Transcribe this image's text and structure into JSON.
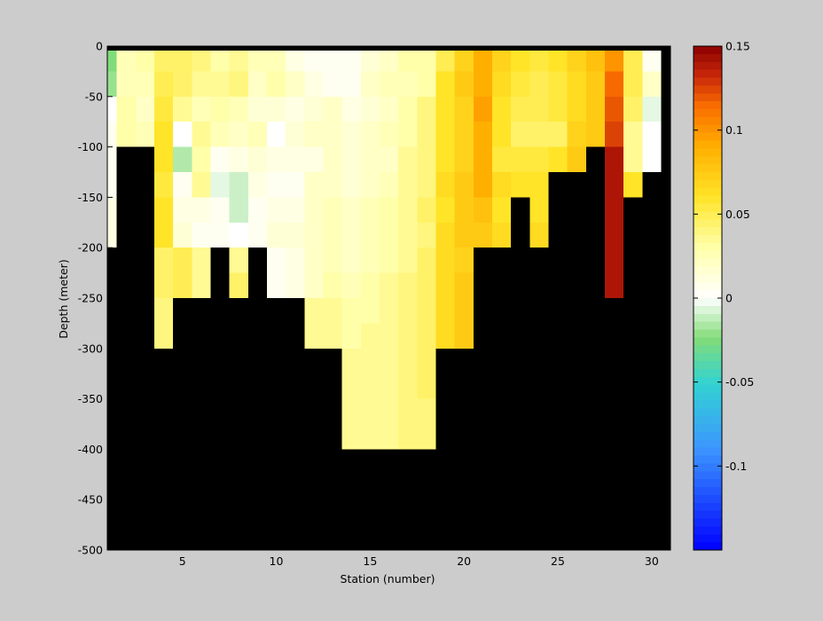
{
  "chart_data": {
    "type": "heatmap",
    "title": "",
    "xlabel": "Station (number)",
    "ylabel": "Depth (meter)",
    "xlim": [
      1,
      31
    ],
    "ylim": [
      -500,
      0
    ],
    "xticks": [
      5,
      10,
      15,
      20,
      25,
      30
    ],
    "yticks": [
      0,
      -50,
      -100,
      -150,
      -200,
      -250,
      -300,
      -350,
      -400,
      -450,
      -500
    ],
    "missing_color": "#000000",
    "colorbar": {
      "range": [
        -0.15,
        0.15
      ],
      "ticks": [
        0.15,
        0.1,
        0.05,
        0,
        -0.05,
        -0.1
      ],
      "tick_labels": [
        "0.15",
        "0.1",
        "0.05",
        "0",
        "-0.05",
        "-0.1"
      ]
    },
    "stations": [
      1,
      2,
      3,
      4,
      5,
      6,
      7,
      8,
      9,
      10,
      11,
      12,
      13,
      14,
      15,
      16,
      17,
      18,
      19,
      20,
      21,
      22,
      23,
      24,
      25,
      26,
      27,
      28,
      29,
      30
    ],
    "depths": [
      0,
      -25,
      -50,
      -75,
      -100,
      -125,
      -150,
      -175,
      -200,
      -225,
      -250,
      -275,
      -300,
      -325,
      -350,
      -375,
      -400,
      -425,
      -450,
      -475
    ],
    "depth_step": 25,
    "values": [
      [
        -0.025,
        0.025,
        0.03,
        0.045,
        0.045,
        0.04,
        0.03,
        0.035,
        0.025,
        0.025,
        0.01,
        0.005,
        0.005,
        0.005,
        0.015,
        0.02,
        0.03,
        0.03,
        0.05,
        0.07,
        0.09,
        0.07,
        0.06,
        0.055,
        0.06,
        0.07,
        0.08,
        0.1,
        0.05,
        0.005
      ],
      [
        -0.02,
        0.025,
        0.025,
        0.05,
        0.045,
        0.035,
        0.035,
        0.04,
        0.02,
        0.03,
        0.02,
        0.01,
        0.005,
        0.005,
        0.02,
        0.025,
        0.025,
        0.03,
        0.06,
        0.075,
        0.09,
        0.065,
        0.055,
        0.05,
        0.055,
        0.065,
        0.075,
        0.115,
        0.05,
        0.02
      ],
      [
        0.0,
        0.03,
        0.02,
        0.055,
        0.035,
        0.025,
        0.03,
        0.025,
        0.015,
        0.015,
        0.01,
        0.015,
        0.02,
        0.01,
        0.015,
        0.02,
        0.03,
        0.04,
        0.06,
        0.07,
        0.095,
        0.06,
        0.05,
        0.05,
        0.055,
        0.065,
        0.075,
        0.12,
        0.045,
        -0.005
      ],
      [
        0.005,
        0.03,
        0.025,
        0.06,
        0.0,
        0.035,
        0.025,
        0.02,
        0.025,
        0.0,
        0.015,
        0.02,
        0.02,
        0.015,
        0.02,
        0.025,
        0.03,
        0.04,
        0.06,
        0.07,
        0.09,
        0.06,
        0.045,
        0.045,
        0.045,
        0.07,
        0.075,
        0.125,
        0.035,
        0.0
      ],
      [
        0.005,
        null,
        null,
        0.06,
        -0.015,
        0.03,
        0.005,
        0.01,
        0.015,
        0.01,
        0.01,
        0.01,
        0.02,
        0.015,
        0.02,
        0.02,
        0.035,
        0.04,
        0.06,
        0.07,
        0.09,
        0.055,
        0.055,
        0.055,
        0.06,
        0.075,
        null,
        0.14,
        0.035,
        0.0
      ],
      [
        0.005,
        null,
        null,
        0.055,
        0.005,
        0.035,
        -0.005,
        -0.01,
        0.01,
        0.005,
        0.005,
        0.02,
        0.02,
        0.015,
        0.02,
        0.025,
        0.035,
        0.04,
        0.065,
        0.075,
        0.09,
        0.065,
        0.06,
        0.06,
        null,
        null,
        null,
        0.14,
        0.06,
        null
      ],
      [
        0.01,
        null,
        null,
        0.06,
        0.01,
        0.01,
        0.005,
        -0.01,
        0.005,
        0.01,
        0.01,
        0.02,
        0.025,
        0.02,
        0.025,
        0.03,
        0.035,
        0.045,
        0.06,
        0.075,
        0.08,
        0.06,
        null,
        0.06,
        null,
        null,
        null,
        0.14,
        null,
        null
      ],
      [
        0.01,
        null,
        null,
        0.06,
        0.015,
        0.005,
        0.005,
        0.0,
        0.005,
        0.015,
        0.015,
        0.02,
        0.025,
        0.02,
        0.025,
        0.03,
        0.035,
        0.04,
        0.065,
        0.075,
        0.075,
        0.065,
        null,
        0.065,
        null,
        null,
        null,
        0.14,
        null,
        null
      ],
      [
        null,
        null,
        null,
        0.045,
        0.05,
        0.035,
        null,
        0.035,
        null,
        0.005,
        0.01,
        0.02,
        0.025,
        0.02,
        0.025,
        0.03,
        0.035,
        0.045,
        0.065,
        0.07,
        null,
        null,
        null,
        null,
        null,
        null,
        null,
        0.14,
        null,
        null
      ],
      [
        null,
        null,
        null,
        0.045,
        0.05,
        0.035,
        null,
        0.045,
        null,
        0.005,
        0.01,
        0.02,
        0.03,
        0.025,
        0.03,
        0.035,
        0.04,
        0.045,
        0.065,
        0.075,
        null,
        null,
        null,
        null,
        null,
        null,
        null,
        0.14,
        null,
        null
      ],
      [
        null,
        null,
        null,
        0.04,
        null,
        null,
        null,
        null,
        null,
        null,
        null,
        0.035,
        0.035,
        0.03,
        0.03,
        0.035,
        0.04,
        0.045,
        0.065,
        0.075,
        null,
        null,
        null,
        null,
        null,
        null,
        null,
        null,
        null,
        null
      ],
      [
        null,
        null,
        null,
        0.04,
        null,
        null,
        null,
        null,
        null,
        null,
        null,
        0.035,
        0.035,
        0.03,
        0.035,
        0.035,
        0.04,
        0.045,
        0.065,
        0.075,
        null,
        null,
        null,
        null,
        null,
        null,
        null,
        null,
        null,
        null
      ],
      [
        null,
        null,
        null,
        null,
        null,
        null,
        null,
        null,
        null,
        null,
        null,
        null,
        null,
        0.035,
        0.035,
        0.035,
        0.04,
        0.045,
        null,
        null,
        null,
        null,
        null,
        null,
        null,
        null,
        null,
        null,
        null,
        null
      ],
      [
        null,
        null,
        null,
        null,
        null,
        null,
        null,
        null,
        null,
        null,
        null,
        null,
        null,
        0.035,
        0.035,
        0.035,
        0.04,
        0.045,
        null,
        null,
        null,
        null,
        null,
        null,
        null,
        null,
        null,
        null,
        null,
        null
      ],
      [
        null,
        null,
        null,
        null,
        null,
        null,
        null,
        null,
        null,
        null,
        null,
        null,
        null,
        0.035,
        0.035,
        0.035,
        0.04,
        0.04,
        null,
        null,
        null,
        null,
        null,
        null,
        null,
        null,
        null,
        null,
        null,
        null
      ],
      [
        null,
        null,
        null,
        null,
        null,
        null,
        null,
        null,
        null,
        null,
        null,
        null,
        null,
        0.035,
        0.035,
        0.035,
        0.04,
        0.04,
        null,
        null,
        null,
        null,
        null,
        null,
        null,
        null,
        null,
        null,
        null,
        null
      ],
      [
        null,
        null,
        null,
        null,
        null,
        null,
        null,
        null,
        null,
        null,
        null,
        null,
        null,
        null,
        null,
        null,
        null,
        null,
        null,
        null,
        null,
        null,
        null,
        null,
        null,
        null,
        null,
        null,
        null,
        null
      ],
      [
        null,
        null,
        null,
        null,
        null,
        null,
        null,
        null,
        null,
        null,
        null,
        null,
        null,
        null,
        null,
        null,
        null,
        null,
        null,
        null,
        null,
        null,
        null,
        null,
        null,
        null,
        null,
        null,
        null,
        null
      ],
      [
        null,
        null,
        null,
        null,
        null,
        null,
        null,
        null,
        null,
        null,
        null,
        null,
        null,
        null,
        null,
        null,
        null,
        null,
        null,
        null,
        null,
        null,
        null,
        null,
        null,
        null,
        null,
        null,
        null,
        null
      ],
      [
        null,
        null,
        null,
        null,
        null,
        null,
        null,
        null,
        null,
        null,
        null,
        null,
        null,
        null,
        null,
        null,
        null,
        null,
        null,
        null,
        null,
        null,
        null,
        null,
        null,
        null,
        null,
        null,
        null,
        null
      ]
    ]
  }
}
